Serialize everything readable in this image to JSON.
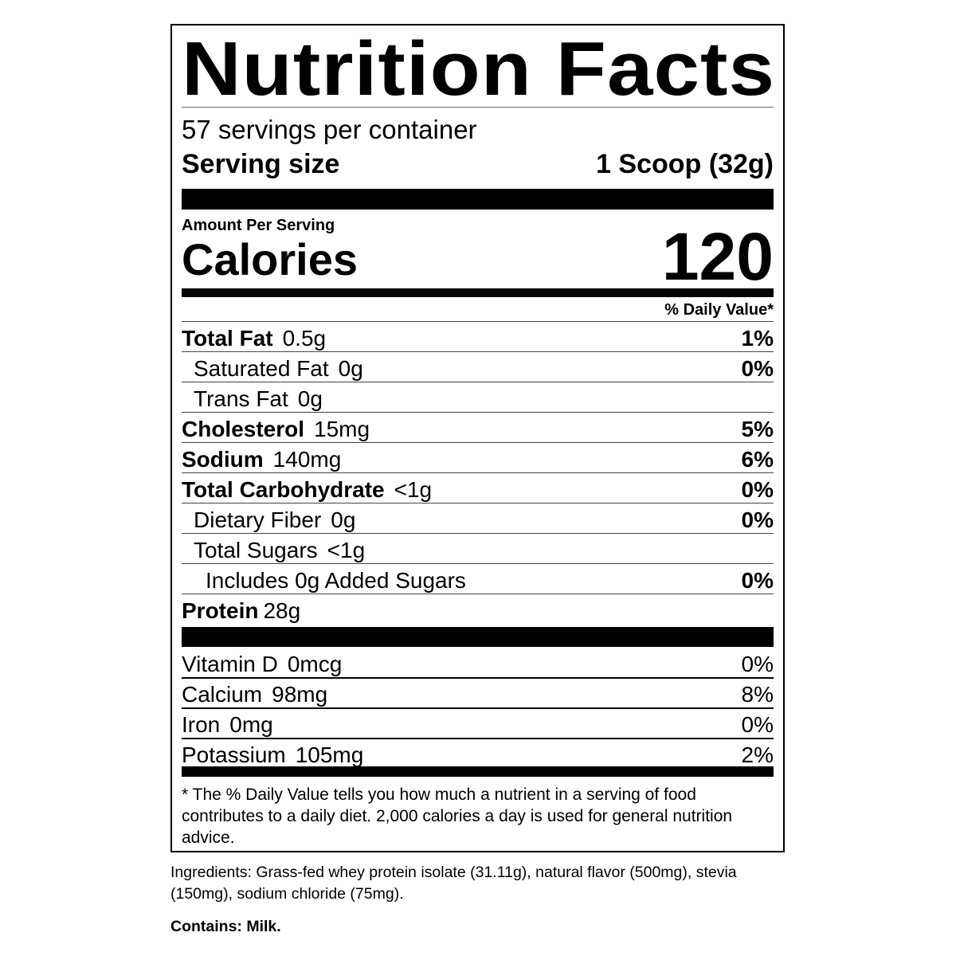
{
  "label": {
    "title": "Nutrition Facts",
    "servings_per_container": "57 servings per container",
    "serving_size_label": "Serving size",
    "serving_size_value": "1 Scoop (32g)",
    "amount_per_serving": "Amount Per Serving",
    "calories_label": "Calories",
    "calories_value": "120",
    "daily_value_header": "% Daily Value*",
    "nutrients": [
      {
        "name": "Total Fat",
        "amount": "0.5g",
        "dv": "1%"
      },
      {
        "name": "Saturated Fat",
        "amount": "0g",
        "dv": "0%"
      },
      {
        "name": "Trans Fat",
        "amount": "0g",
        "dv": ""
      },
      {
        "name": "Cholesterol",
        "amount": "15mg",
        "dv": "5%"
      },
      {
        "name": "Sodium",
        "amount": "140mg",
        "dv": "6%"
      },
      {
        "name": "Total Carbohydrate",
        "amount": "<1g",
        "dv": "0%"
      },
      {
        "name": "Dietary Fiber",
        "amount": "0g",
        "dv": "0%"
      },
      {
        "name": "Total Sugars",
        "amount": "<1g",
        "dv": ""
      },
      {
        "name": "Includes 0g Added Sugars",
        "amount": "",
        "dv": "0%"
      },
      {
        "name": "Protein",
        "amount": "28g",
        "dv": ""
      }
    ],
    "vitamins": [
      {
        "name": "Vitamin D",
        "amount": "0mcg",
        "dv": "0%"
      },
      {
        "name": "Calcium",
        "amount": "98mg",
        "dv": "8%"
      },
      {
        "name": "Iron",
        "amount": "0mg",
        "dv": "0%"
      },
      {
        "name": "Potassium",
        "amount": "105mg",
        "dv": "2%"
      }
    ],
    "footnote": "* The % Daily Value tells you how much a nutrient in a serving of food contributes to a daily diet. 2,000 calories a day is used for general nutrition advice."
  },
  "ingredients": "Ingredients: Grass-fed whey protein isolate (31.11g), natural flavor (500mg), stevia (150mg), sodium chloride (75mg).",
  "contains": "Contains: Milk."
}
